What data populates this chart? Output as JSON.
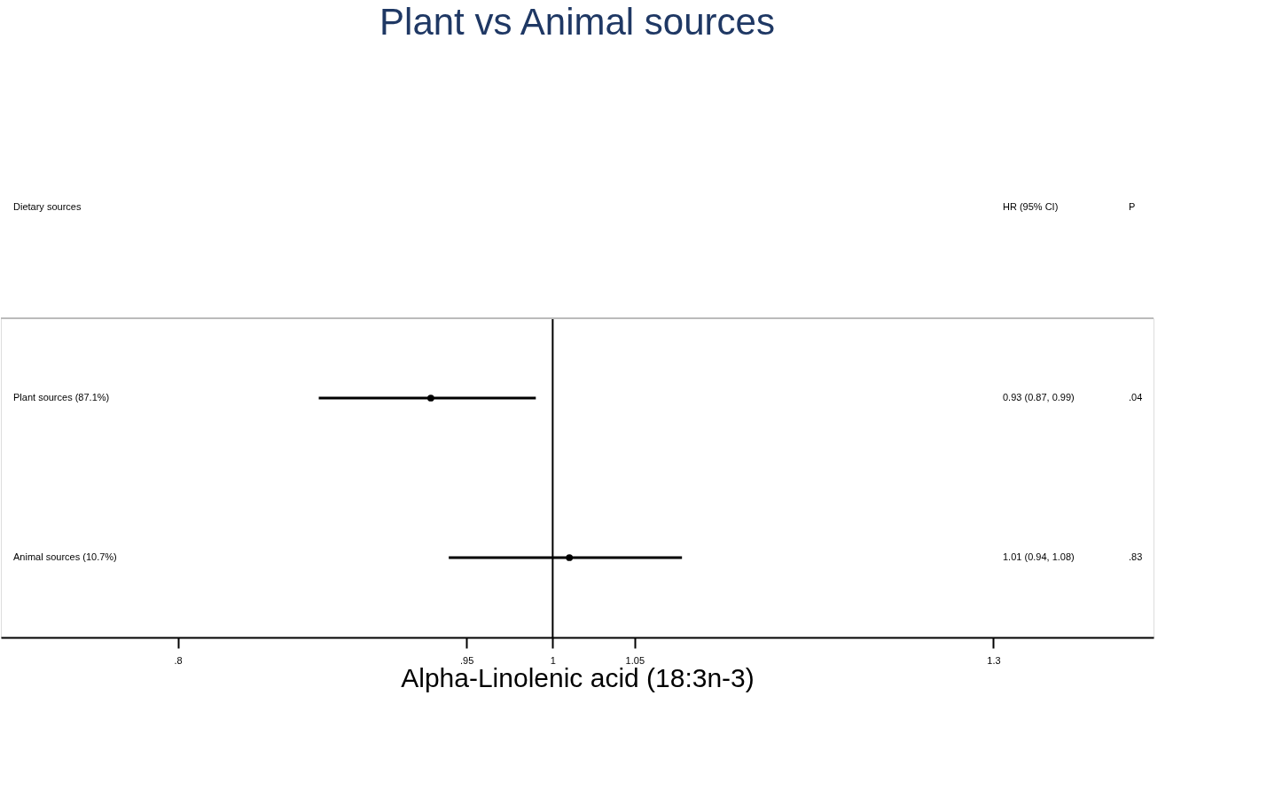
{
  "chart_data": {
    "type": "scatter",
    "orientation": "horizontal",
    "title": "Plant vs Animal sources",
    "xlabel": "Alpha-Linolenic acid (18:3n-3)",
    "categories": [
      "Plant sources (87.1%)",
      "Animal sources (10.7%)"
    ],
    "values": [
      0.93,
      1.01
    ],
    "errors": [
      [
        0.87,
        0.99
      ],
      [
        0.94,
        1.08
      ]
    ],
    "color": "#000000",
    "annotations": [
      "Dietary sources",
      "HR (95% CI)",
      "P",
      "0.93 (0.87, 0.99)",
      "1.01 (0.94, 1.08)",
      ".04",
      ".83"
    ],
    "ref_lines": [
      {
        "axis": "x",
        "value": 1,
        "color": "#000000"
      }
    ],
    "log": "x",
    "xlim": [
      0.72,
      1.43
    ],
    "xticks": [
      {
        "value": 0.8,
        "label": ".8"
      },
      {
        "value": 0.95,
        "label": ".95"
      },
      1,
      1.05,
      1.3
    ],
    "tick_labels": "x",
    "marker": "circle",
    "grid": false,
    "legend": false
  }
}
